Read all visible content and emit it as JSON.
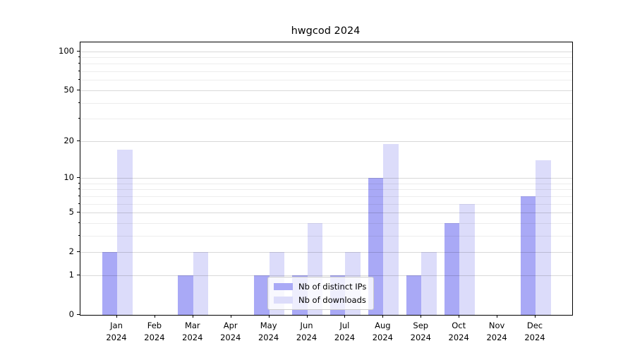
{
  "title": "hwgcod 2024",
  "colors": {
    "ips": "#a9a9f6",
    "downloads": "#dcdcfa",
    "spine": "#000000",
    "grid_major": "rgba(0,0,0,0.15)",
    "grid_minor": "rgba(0,0,0,0.07)"
  },
  "legend": {
    "items": [
      {
        "label": "Nb of distinct IPs",
        "series": "ips"
      },
      {
        "label": "Nb of downloads",
        "series": "downloads"
      }
    ]
  },
  "chart_data": {
    "type": "bar",
    "title": "hwgcod 2024",
    "categories": [
      "Jan 2024",
      "Feb 2024",
      "Mar 2024",
      "Apr 2024",
      "May 2024",
      "Jun 2024",
      "Jul 2024",
      "Aug 2024",
      "Sep 2024",
      "Oct 2024",
      "Nov 2024",
      "Dec 2024"
    ],
    "series": [
      {
        "name": "Nb of distinct IPs",
        "values": [
          2,
          0,
          1,
          0,
          1,
          1,
          1,
          10,
          1,
          4,
          0,
          7
        ],
        "color": "#a9a9f6"
      },
      {
        "name": "Nb of downloads",
        "values": [
          17,
          0,
          2,
          0,
          2,
          4,
          2,
          19,
          2,
          6,
          0,
          14
        ],
        "color": "#dcdcfa"
      }
    ],
    "xlabel": "",
    "ylabel": "",
    "yscale": "log1p",
    "ylim": [
      0,
      117
    ],
    "yticks_major": [
      0,
      1,
      2,
      5,
      10,
      20,
      50,
      100
    ],
    "yticks_minor": [
      3,
      4,
      6,
      7,
      8,
      9,
      30,
      40,
      60,
      70,
      80,
      90
    ],
    "grid": true,
    "legend_position": "lower center"
  }
}
